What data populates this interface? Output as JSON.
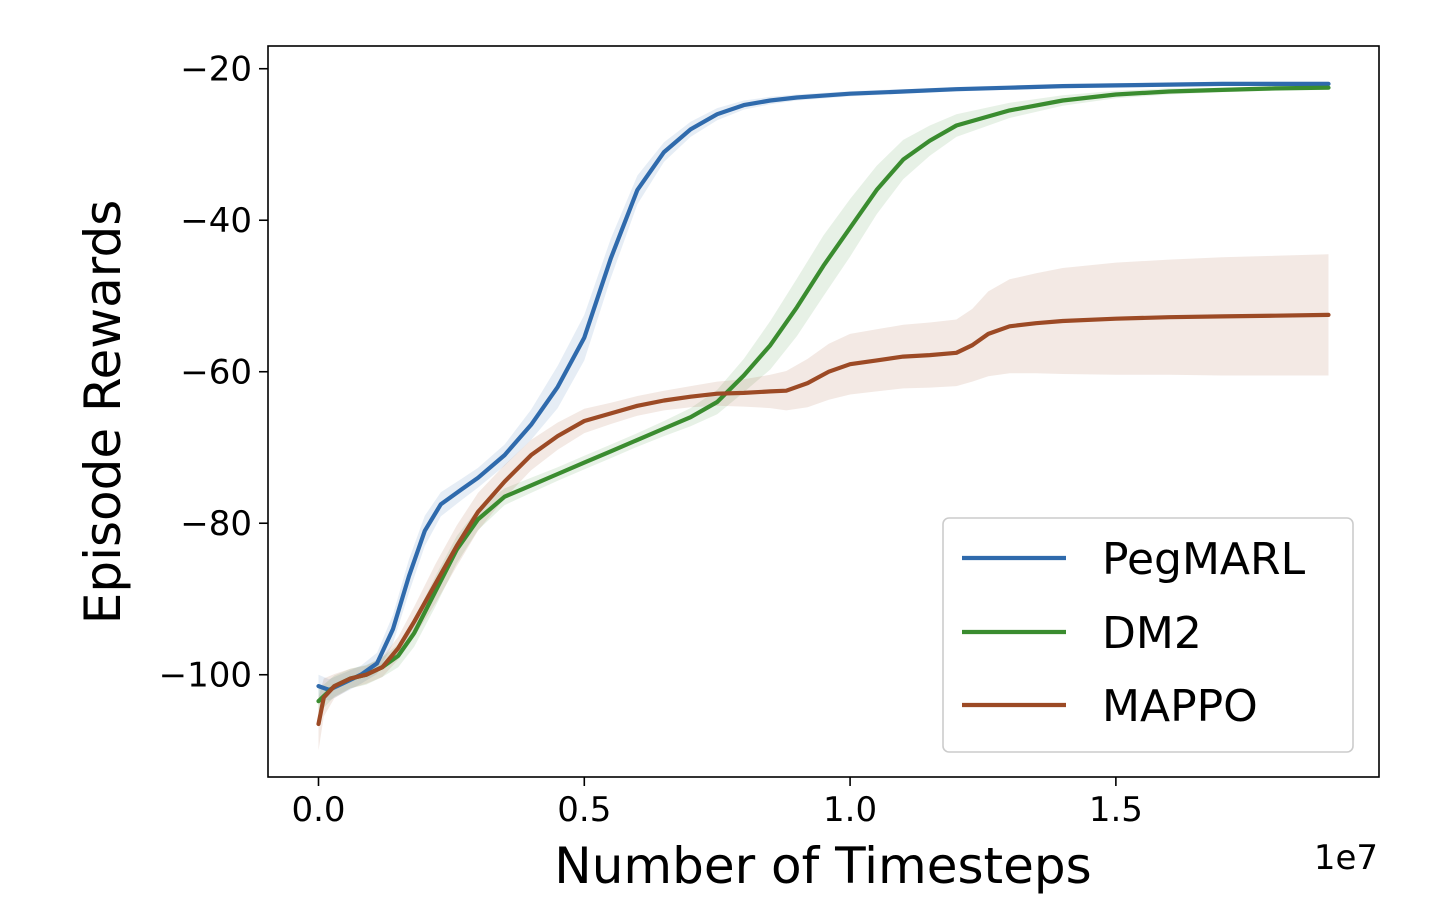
{
  "chart_data": {
    "type": "line",
    "xlabel": "Number of Timesteps",
    "ylabel": "Episode Rewards",
    "x_offset_label": "1e7",
    "xlim": [
      -0.095,
      1.995
    ],
    "ylim": [
      -113.5,
      -17.0
    ],
    "x_ticks": [
      0.0,
      0.5,
      1.0,
      1.5
    ],
    "x_tick_labels": [
      "0.0",
      "0.5",
      "1.0",
      "1.5"
    ],
    "y_ticks": [
      -100,
      -80,
      -60,
      -40,
      -20
    ],
    "y_tick_labels": [
      "−100",
      "−80",
      "−60",
      "−40",
      "−20"
    ],
    "grid": false,
    "legend_position": "lower-right",
    "series": [
      {
        "name": "PegMARL",
        "color": "#2f6aac",
        "x": [
          0.0,
          0.02,
          0.05,
          0.08,
          0.11,
          0.14,
          0.17,
          0.2,
          0.23,
          0.27,
          0.3,
          0.35,
          0.4,
          0.45,
          0.5,
          0.55,
          0.6,
          0.65,
          0.7,
          0.75,
          0.8,
          0.85,
          0.9,
          1.0,
          1.1,
          1.2,
          1.3,
          1.4,
          1.5,
          1.6,
          1.7,
          1.8,
          1.9
        ],
        "y": [
          -101.5,
          -102.0,
          -101.0,
          -100.0,
          -98.5,
          -94.0,
          -87.0,
          -81.0,
          -77.5,
          -75.5,
          -74.0,
          -71.0,
          -67.0,
          -62.0,
          -55.5,
          -45.0,
          -36.0,
          -31.0,
          -28.0,
          -26.0,
          -24.8,
          -24.2,
          -23.8,
          -23.3,
          -23.0,
          -22.7,
          -22.5,
          -22.3,
          -22.2,
          -22.1,
          -22.0,
          -22.0,
          -22.0
        ],
        "band": [
          1.5,
          1.4,
          1.3,
          1.2,
          1.4,
          1.9,
          2.2,
          2.0,
          1.6,
          1.4,
          1.3,
          1.4,
          2.0,
          2.8,
          3.0,
          2.6,
          1.9,
          1.3,
          1.0,
          0.8,
          0.6,
          0.5,
          0.4,
          0.35,
          0.3,
          0.3,
          0.3,
          0.3,
          0.3,
          0.3,
          0.3,
          0.3,
          0.3
        ]
      },
      {
        "name": "DM2",
        "color": "#3a8c2f",
        "x": [
          0.0,
          0.03,
          0.06,
          0.09,
          0.12,
          0.15,
          0.18,
          0.22,
          0.26,
          0.3,
          0.35,
          0.4,
          0.45,
          0.5,
          0.55,
          0.6,
          0.65,
          0.7,
          0.75,
          0.8,
          0.85,
          0.9,
          0.95,
          1.0,
          1.05,
          1.1,
          1.15,
          1.2,
          1.3,
          1.4,
          1.5,
          1.6,
          1.7,
          1.8,
          1.9
        ],
        "y": [
          -103.5,
          -101.5,
          -100.5,
          -100.0,
          -99.0,
          -97.5,
          -94.5,
          -89.0,
          -83.5,
          -79.5,
          -76.5,
          -75.0,
          -73.5,
          -72.0,
          -70.5,
          -69.0,
          -67.5,
          -66.0,
          -64.0,
          -60.5,
          -56.5,
          -51.5,
          -46.0,
          -41.0,
          -36.0,
          -32.0,
          -29.5,
          -27.5,
          -25.5,
          -24.2,
          -23.4,
          -23.0,
          -22.8,
          -22.6,
          -22.5
        ],
        "band": [
          1.6,
          1.4,
          1.3,
          1.3,
          1.3,
          1.5,
          1.8,
          2.0,
          1.8,
          1.4,
          1.1,
          1.0,
          0.9,
          0.9,
          0.9,
          0.9,
          1.0,
          1.2,
          1.6,
          2.2,
          3.2,
          3.8,
          4.0,
          3.8,
          3.2,
          2.6,
          2.0,
          1.5,
          1.0,
          0.7,
          0.5,
          0.4,
          0.3,
          0.3,
          0.3
        ]
      },
      {
        "name": "MAPPO",
        "color": "#9c4a25",
        "x": [
          0.0,
          0.01,
          0.03,
          0.06,
          0.09,
          0.12,
          0.15,
          0.18,
          0.22,
          0.26,
          0.3,
          0.35,
          0.4,
          0.45,
          0.5,
          0.55,
          0.6,
          0.65,
          0.7,
          0.75,
          0.8,
          0.85,
          0.88,
          0.92,
          0.96,
          1.0,
          1.05,
          1.1,
          1.15,
          1.2,
          1.23,
          1.26,
          1.3,
          1.35,
          1.4,
          1.5,
          1.6,
          1.7,
          1.8,
          1.9
        ],
        "y": [
          -106.5,
          -103.0,
          -101.5,
          -100.5,
          -100.0,
          -99.0,
          -96.5,
          -93.0,
          -88.0,
          -83.0,
          -78.5,
          -74.5,
          -71.0,
          -68.5,
          -66.5,
          -65.5,
          -64.5,
          -63.8,
          -63.3,
          -62.9,
          -62.8,
          -62.6,
          -62.5,
          -61.5,
          -60.0,
          -59.0,
          -58.5,
          -58.0,
          -57.8,
          -57.5,
          -56.5,
          -55.0,
          -54.0,
          -53.6,
          -53.3,
          -53.0,
          -52.8,
          -52.7,
          -52.6,
          -52.5
        ],
        "band": [
          3.5,
          2.5,
          1.6,
          1.3,
          1.2,
          1.3,
          1.5,
          2.0,
          2.6,
          2.7,
          2.5,
          2.2,
          2.0,
          1.8,
          1.6,
          1.4,
          1.3,
          1.3,
          1.4,
          1.6,
          1.8,
          2.2,
          2.6,
          3.2,
          3.7,
          4.0,
          4.1,
          4.2,
          4.3,
          4.4,
          4.8,
          5.6,
          6.2,
          6.6,
          7.0,
          7.4,
          7.6,
          7.8,
          7.9,
          8.0
        ]
      }
    ]
  }
}
